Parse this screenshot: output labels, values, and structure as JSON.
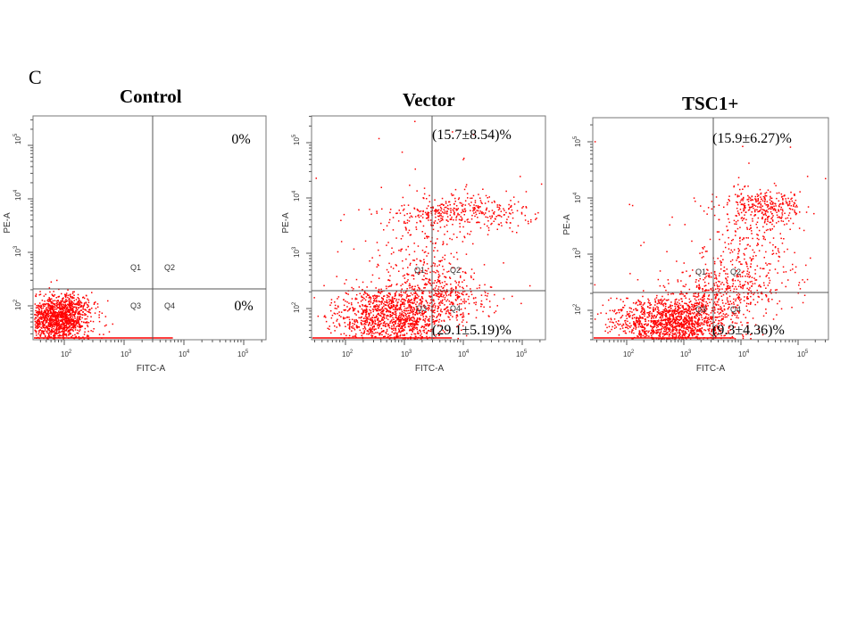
{
  "figure": {
    "panel_letter": "C"
  },
  "chart_data": [
    {
      "type": "scatter",
      "title": "Control",
      "xlabel": "FITC-A",
      "ylabel": "PE-A",
      "x_ticks": [
        "10^2",
        "10^3",
        "10^4",
        "10^5"
      ],
      "y_ticks": [
        "10^2",
        "10^3",
        "10^4",
        "10^5"
      ],
      "scale": "log",
      "quadrant_labels": [
        "Q1",
        "Q2",
        "Q3",
        "Q4"
      ],
      "quadrant_percent": {
        "Q2": "0%",
        "Q4": "0%"
      },
      "color": "#ff0000"
    },
    {
      "type": "scatter",
      "title": "Vector",
      "xlabel": "FITC-A",
      "ylabel": "PE-A",
      "x_ticks": [
        "10^2",
        "10^3",
        "10^4",
        "10^5"
      ],
      "y_ticks": [
        "10^2",
        "10^3",
        "10^4",
        "10^5"
      ],
      "scale": "log",
      "quadrant_labels": [
        "Q1",
        "Q2",
        "Q3",
        "Q4"
      ],
      "quadrant_percent": {
        "Q2": "(15.7±8.54)%",
        "Q4": "(29.1±5.19)%"
      },
      "color": "#ff0000"
    },
    {
      "type": "scatter",
      "title": "TSC1+",
      "xlabel": "FITC-A",
      "ylabel": "PE-A",
      "x_ticks": [
        "10^2",
        "10^3",
        "10^4",
        "10^5"
      ],
      "y_ticks": [
        "10^2",
        "10^3",
        "10^4",
        "10^5"
      ],
      "scale": "log",
      "quadrant_labels": [
        "Q1",
        "Q2",
        "Q3",
        "Q4"
      ],
      "quadrant_percent": {
        "Q2": "(15.9±6.27)%",
        "Q4": "(9.3±4.36)%"
      },
      "color": "#ff0000"
    }
  ]
}
